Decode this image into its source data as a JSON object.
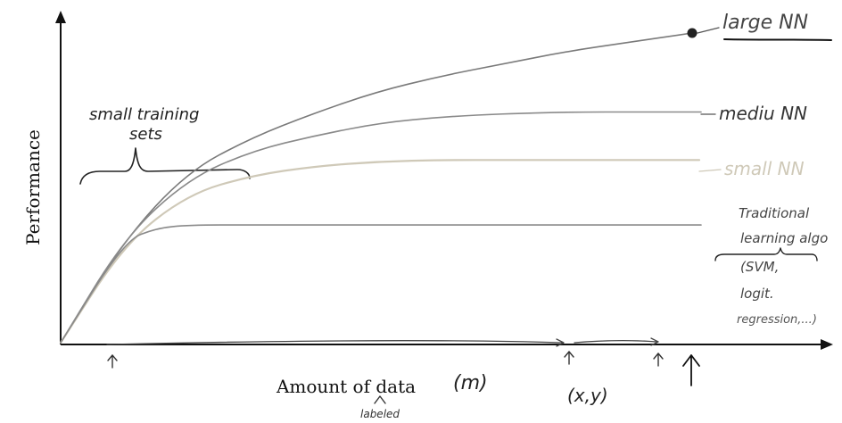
{
  "chart_data": {
    "type": "line",
    "xlabel": "Amount of data",
    "ylabel": "Performance",
    "x_annotation": "(m)",
    "x_sub_annotation": "labeled",
    "data_pair_annotation": "(x,y)",
    "bracket_note": [
      "small training",
      "sets"
    ],
    "grid": false,
    "legend": "labels at right end of each curve",
    "series": [
      {
        "name": "large NN",
        "color": "#7a7a7a",
        "x": [
          0,
          0.1,
          0.2,
          0.3,
          0.4,
          0.5,
          0.6,
          0.7,
          0.8,
          0.9,
          1.0
        ],
        "y": [
          0.0,
          0.33,
          0.55,
          0.66,
          0.74,
          0.81,
          0.86,
          0.9,
          0.94,
          0.97,
          1.0
        ]
      },
      {
        "name": "medium NN",
        "color": "#8a8a8a",
        "x": [
          0,
          0.1,
          0.2,
          0.3,
          0.4,
          0.5,
          0.6,
          0.7,
          0.8,
          0.9,
          1.0
        ],
        "y": [
          0.0,
          0.34,
          0.53,
          0.62,
          0.67,
          0.71,
          0.73,
          0.74,
          0.745,
          0.745,
          0.745
        ]
      },
      {
        "name": "small NN",
        "color": "#cfc9b8",
        "x": [
          0,
          0.1,
          0.2,
          0.3,
          0.4,
          0.5,
          0.6,
          0.7,
          0.8,
          0.9,
          1.0
        ],
        "y": [
          0.0,
          0.32,
          0.48,
          0.54,
          0.57,
          0.585,
          0.59,
          0.59,
          0.59,
          0.59,
          0.59
        ]
      },
      {
        "name": "Traditional learning algo (SVM, logistic regression,...)",
        "color": "#8a8a8a",
        "x": [
          0,
          0.1,
          0.15,
          0.2,
          0.3,
          0.4,
          0.5,
          0.6,
          0.7,
          0.8,
          0.9,
          1.0
        ],
        "y": [
          0.0,
          0.33,
          0.37,
          0.38,
          0.38,
          0.38,
          0.38,
          0.38,
          0.38,
          0.38,
          0.38,
          0.38
        ]
      }
    ],
    "labels": {
      "large": "large NN",
      "medium": "mediu NN",
      "small": "small NN",
      "traditional": [
        "Traditional",
        "learning algo",
        "(SVM,",
        "logit.",
        "regression,...)"
      ]
    }
  },
  "colors": {
    "axis": "#111111",
    "ink": "#2a2a2a",
    "light": "#cfc9b8"
  }
}
